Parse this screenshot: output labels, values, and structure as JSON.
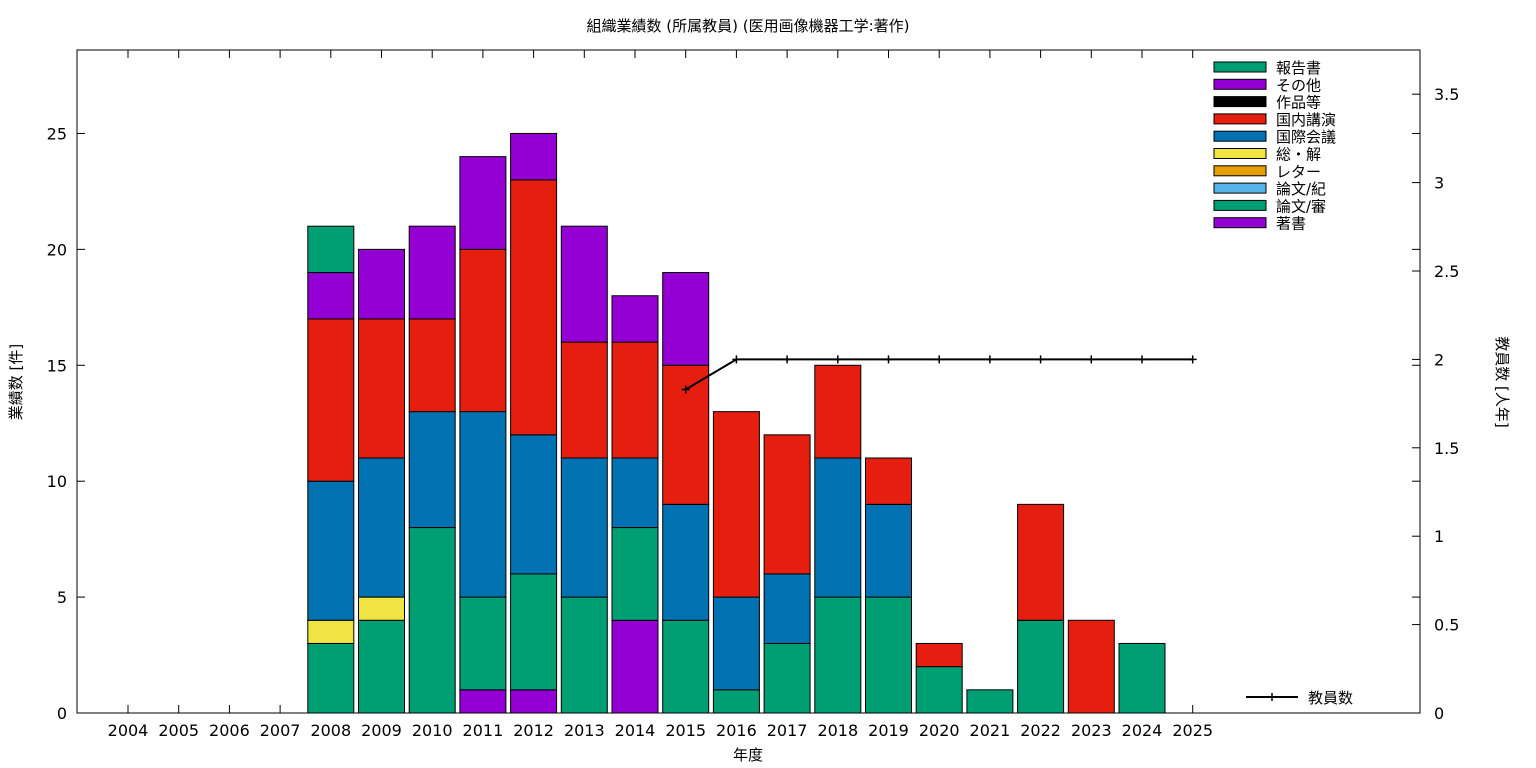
{
  "chart_data": {
    "type": "bar",
    "stacked": true,
    "title": "組織業績数 (所属教員) (医用画像機器工学:著作)",
    "xlabel": "年度",
    "ylabel": "業績数 [件]",
    "y2label": "教員数 [人年]",
    "ylim": [
      0,
      28.6
    ],
    "y2lim": [
      0,
      3.75
    ],
    "yticks": [
      0,
      5,
      10,
      15,
      20,
      25
    ],
    "y2ticks": [
      "0",
      "0.5",
      "1",
      "1.5",
      "2",
      "2.5",
      "3",
      "3.5"
    ],
    "categories": [
      "2004",
      "2005",
      "2006",
      "2007",
      "2008",
      "2009",
      "2010",
      "2011",
      "2012",
      "2013",
      "2014",
      "2015",
      "2016",
      "2017",
      "2018",
      "2019",
      "2020",
      "2021",
      "2022",
      "2023",
      "2024",
      "2025"
    ],
    "legend_position": "top-right",
    "series": [
      {
        "name": "著書",
        "color": "#9400d3",
        "values": [
          0,
          0,
          0,
          0,
          0,
          0,
          0,
          1,
          1,
          0,
          4,
          0,
          0,
          0,
          0,
          0,
          0,
          0,
          0,
          0,
          0,
          0
        ]
      },
      {
        "name": "論文/審",
        "color": "#009e73",
        "values": [
          0,
          0,
          0,
          0,
          3,
          4,
          8,
          4,
          5,
          5,
          4,
          4,
          1,
          3,
          5,
          5,
          2,
          1,
          4,
          0,
          3,
          0
        ]
      },
      {
        "name": "論文/紀",
        "color": "#56b4e9",
        "values": [
          0,
          0,
          0,
          0,
          0,
          0,
          0,
          0,
          0,
          0,
          0,
          0,
          0,
          0,
          0,
          0,
          0,
          0,
          0,
          0,
          0,
          0
        ]
      },
      {
        "name": "レター",
        "color": "#e69f00",
        "values": [
          0,
          0,
          0,
          0,
          0,
          0,
          0,
          0,
          0,
          0,
          0,
          0,
          0,
          0,
          0,
          0,
          0,
          0,
          0,
          0,
          0,
          0
        ]
      },
      {
        "name": "総・解",
        "color": "#f0e442",
        "values": [
          0,
          0,
          0,
          0,
          1,
          1,
          0,
          0,
          0,
          0,
          0,
          0,
          0,
          0,
          0,
          0,
          0,
          0,
          0,
          0,
          0,
          0
        ]
      },
      {
        "name": "国際会議",
        "color": "#0072b2",
        "values": [
          0,
          0,
          0,
          0,
          6,
          6,
          5,
          8,
          6,
          6,
          3,
          5,
          4,
          3,
          6,
          4,
          0,
          0,
          0,
          0,
          0,
          0
        ]
      },
      {
        "name": "国内講演",
        "color": "#e51e10",
        "values": [
          0,
          0,
          0,
          0,
          7,
          6,
          4,
          7,
          11,
          5,
          5,
          6,
          8,
          6,
          4,
          2,
          1,
          0,
          5,
          4,
          0,
          0
        ]
      },
      {
        "name": "作品等",
        "color": "#000000",
        "values": [
          0,
          0,
          0,
          0,
          0,
          0,
          0,
          0,
          0,
          0,
          0,
          0,
          0,
          0,
          0,
          0,
          0,
          0,
          0,
          0,
          0,
          0
        ]
      },
      {
        "name": "その他",
        "color": "#9400d3",
        "values": [
          0,
          0,
          0,
          0,
          2,
          3,
          4,
          4,
          2,
          5,
          2,
          4,
          0,
          0,
          0,
          0,
          0,
          0,
          0,
          0,
          0,
          0
        ]
      },
      {
        "name": "報告書",
        "color": "#009e73",
        "values": [
          0,
          0,
          0,
          0,
          2,
          0,
          0,
          0,
          0,
          0,
          0,
          0,
          0,
          0,
          0,
          0,
          0,
          0,
          0,
          0,
          0,
          0
        ]
      }
    ],
    "line_series": {
      "name": "教員数",
      "axis": "y2",
      "color": "#000000",
      "points": [
        {
          "x": "2015",
          "y": 1.83
        },
        {
          "x": "2016",
          "y": 2
        },
        {
          "x": "2017",
          "y": 2
        },
        {
          "x": "2018",
          "y": 2
        },
        {
          "x": "2019",
          "y": 2
        },
        {
          "x": "2020",
          "y": 2
        },
        {
          "x": "2021",
          "y": 2
        },
        {
          "x": "2022",
          "y": 2
        },
        {
          "x": "2023",
          "y": 2
        },
        {
          "x": "2024",
          "y": 2
        },
        {
          "x": "2025",
          "y": 2
        }
      ]
    }
  }
}
